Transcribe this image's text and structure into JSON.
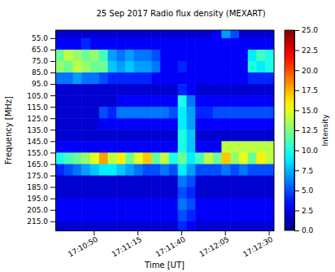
{
  "chart_data": {
    "type": "heatmap",
    "title": "25 Sep 2017 Radio flux density (MEXART)",
    "x_label": "Time [UT]",
    "y_label": "Frequency [MHz]",
    "colorbar_label": "Intensity",
    "xlim": [
      61828,
      61953
    ],
    "xticks": [
      {
        "value": 61850,
        "label": "17:10:50"
      },
      {
        "value": 61875,
        "label": "17:11:15"
      },
      {
        "value": 61900,
        "label": "17:11:40"
      },
      {
        "value": 61925,
        "label": "17:12:05"
      },
      {
        "value": 61950,
        "label": "17:12:30"
      }
    ],
    "ylim": [
      223,
      48
    ],
    "yticks": [
      {
        "value": 55,
        "label": "55.0"
      },
      {
        "value": 65,
        "label": "65.0"
      },
      {
        "value": 75,
        "label": "75.0"
      },
      {
        "value": 85,
        "label": "85.0"
      },
      {
        "value": 95,
        "label": "95.0"
      },
      {
        "value": 105,
        "label": "105.0"
      },
      {
        "value": 115,
        "label": "115.0"
      },
      {
        "value": 125,
        "label": "125.0"
      },
      {
        "value": 135,
        "label": "135.0"
      },
      {
        "value": 145,
        "label": "145.0"
      },
      {
        "value": 155,
        "label": "155.0"
      },
      {
        "value": 165,
        "label": "165.0"
      },
      {
        "value": 175,
        "label": "175.0"
      },
      {
        "value": 185,
        "label": "185.0"
      },
      {
        "value": 195,
        "label": "195.0"
      },
      {
        "value": 205,
        "label": "205.0"
      },
      {
        "value": 215,
        "label": "215.0"
      }
    ],
    "zlim": [
      0,
      25
    ],
    "zticks": [
      {
        "value": 0,
        "label": "0.0"
      },
      {
        "value": 2.5,
        "label": "2.5"
      },
      {
        "value": 5,
        "label": "5.0"
      },
      {
        "value": 7.5,
        "label": "7.5"
      },
      {
        "value": 10,
        "label": "10.0"
      },
      {
        "value": 12.5,
        "label": "12.5"
      },
      {
        "value": 15,
        "label": "15.0"
      },
      {
        "value": 17.5,
        "label": "17.5"
      },
      {
        "value": 20,
        "label": "20.0"
      },
      {
        "value": 22.5,
        "label": "22.5"
      },
      {
        "value": 25,
        "label": "25.0"
      }
    ],
    "x_bins": [
      61828,
      61833,
      61838,
      61843,
      61848,
      61853,
      61858,
      61863,
      61868,
      61873,
      61878,
      61883,
      61888,
      61893,
      61898,
      61903,
      61908,
      61913,
      61918,
      61923,
      61928,
      61933,
      61938,
      61943,
      61948,
      61953
    ],
    "y_bins": [
      45,
      55,
      65,
      75,
      85,
      95,
      105,
      115,
      125,
      135,
      145,
      155,
      165,
      175,
      185,
      195,
      205,
      215,
      225
    ],
    "z": [
      [
        2,
        2,
        2,
        2,
        2,
        2,
        2,
        2,
        2,
        2,
        2,
        2,
        2,
        2,
        2,
        2,
        2,
        2,
        3,
        7,
        5,
        2,
        2,
        2,
        2
      ],
      [
        3,
        3,
        3,
        4,
        3,
        3,
        3,
        3,
        3,
        3,
        3,
        3,
        3,
        3,
        3,
        3,
        3,
        3,
        3,
        3,
        3,
        3,
        3,
        3,
        3
      ],
      [
        12,
        14,
        13,
        12,
        13,
        11,
        7,
        6,
        7,
        6,
        6,
        5,
        3,
        3,
        3,
        3,
        3,
        3,
        3,
        3,
        3,
        3,
        9,
        11,
        10
      ],
      [
        13,
        12,
        14,
        13,
        12,
        12,
        8,
        7,
        8,
        7,
        7,
        6,
        3,
        3,
        4,
        3,
        3,
        3,
        3,
        3,
        3,
        3,
        10,
        9,
        10
      ],
      [
        6,
        6,
        7,
        6,
        6,
        5,
        4,
        4,
        4,
        4,
        4,
        3,
        3,
        3,
        3,
        3,
        3,
        3,
        3,
        3,
        3,
        3,
        4,
        4,
        4
      ],
      [
        2,
        2,
        2,
        2,
        2,
        2,
        2,
        2,
        2,
        2,
        2,
        2,
        2,
        2,
        4,
        3,
        2,
        2,
        2,
        2,
        2,
        2,
        2,
        2,
        2
      ],
      [
        2,
        2,
        2,
        2,
        2,
        2,
        2,
        3,
        3,
        3,
        3,
        3,
        3,
        3,
        10,
        6,
        3,
        3,
        3,
        3,
        3,
        3,
        3,
        3,
        3
      ],
      [
        2,
        2,
        2,
        2,
        2,
        5,
        4,
        6,
        6,
        6,
        6,
        6,
        6,
        5,
        9,
        7,
        4,
        4,
        5,
        5,
        5,
        5,
        5,
        5,
        5
      ],
      [
        2,
        2,
        2,
        2,
        2,
        3,
        3,
        3,
        3,
        3,
        3,
        3,
        3,
        3,
        9,
        7,
        3,
        3,
        3,
        3,
        3,
        3,
        3,
        3,
        3
      ],
      [
        2,
        2,
        2,
        2,
        2,
        2,
        2,
        2,
        2,
        2,
        2,
        2,
        2,
        2,
        10,
        8,
        2,
        2,
        2,
        2,
        2,
        2,
        2,
        2,
        2
      ],
      [
        3,
        3,
        3,
        3,
        3,
        3,
        3,
        3,
        3,
        3,
        3,
        3,
        3,
        3,
        10,
        8,
        3,
        3,
        3,
        14,
        14,
        14,
        14,
        14,
        14
      ],
      [
        10,
        11,
        12,
        13,
        15,
        18,
        14,
        16,
        12,
        15,
        17,
        12,
        14,
        10,
        12,
        9,
        11,
        14,
        12,
        17,
        13,
        15,
        12,
        16,
        14
      ],
      [
        4,
        5,
        6,
        7,
        8,
        9,
        9,
        8,
        7,
        6,
        5,
        5,
        6,
        5,
        9,
        7,
        5,
        5,
        5,
        6,
        5,
        6,
        5,
        5,
        5
      ],
      [
        2,
        2,
        2,
        2,
        2,
        2,
        2,
        2,
        2,
        2,
        2,
        2,
        2,
        2,
        6,
        5,
        2,
        2,
        2,
        2,
        2,
        2,
        2,
        2,
        2
      ],
      [
        2,
        2,
        2,
        2,
        2,
        2,
        2,
        2,
        2,
        2,
        2,
        2,
        2,
        2,
        5,
        4,
        2,
        2,
        2,
        2,
        2,
        2,
        2,
        2,
        2
      ],
      [
        3,
        3,
        3,
        3,
        3,
        3,
        3,
        3,
        3,
        3,
        3,
        3,
        3,
        3,
        6,
        5,
        3,
        3,
        3,
        3,
        3,
        3,
        3,
        3,
        3
      ],
      [
        3,
        3,
        3,
        3,
        3,
        3,
        3,
        3,
        3,
        3,
        3,
        3,
        3,
        3,
        5,
        4,
        3,
        3,
        3,
        3,
        3,
        3,
        3,
        3,
        3
      ],
      [
        2,
        2,
        2,
        2,
        2,
        2,
        2,
        2,
        2,
        2,
        2,
        2,
        2,
        2,
        4,
        3,
        2,
        2,
        2,
        2,
        2,
        2,
        2,
        2,
        2
      ]
    ]
  }
}
